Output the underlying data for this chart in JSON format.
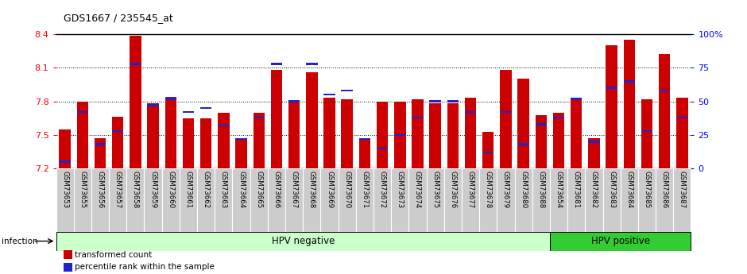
{
  "title": "GDS1667 / 235545_at",
  "samples": [
    "GSM73653",
    "GSM73655",
    "GSM73656",
    "GSM73657",
    "GSM73658",
    "GSM73659",
    "GSM73660",
    "GSM73661",
    "GSM73662",
    "GSM73663",
    "GSM73664",
    "GSM73665",
    "GSM73666",
    "GSM73667",
    "GSM73668",
    "GSM73669",
    "GSM73670",
    "GSM73671",
    "GSM73672",
    "GSM73673",
    "GSM73674",
    "GSM73675",
    "GSM73676",
    "GSM73677",
    "GSM73678",
    "GSM73679",
    "GSM73680",
    "GSM73688",
    "GSM73654",
    "GSM73681",
    "GSM73682",
    "GSM73683",
    "GSM73684",
    "GSM73685",
    "GSM73686",
    "GSM73687"
  ],
  "values": [
    7.55,
    7.8,
    7.47,
    7.66,
    8.39,
    7.78,
    7.84,
    7.65,
    7.65,
    7.7,
    7.47,
    7.7,
    8.08,
    7.8,
    8.06,
    7.83,
    7.82,
    7.47,
    7.8,
    7.8,
    7.82,
    7.78,
    7.78,
    7.83,
    7.53,
    8.08,
    8.0,
    7.68,
    7.7,
    7.82,
    7.47,
    8.3,
    8.35,
    7.82,
    8.22,
    7.83
  ],
  "percentile_ranks": [
    5,
    42,
    18,
    28,
    78,
    47,
    52,
    42,
    45,
    32,
    22,
    38,
    78,
    50,
    78,
    55,
    58,
    22,
    15,
    25,
    38,
    50,
    50,
    42,
    12,
    42,
    18,
    33,
    38,
    52,
    20,
    60,
    65,
    28,
    58,
    38
  ],
  "ymin": 7.2,
  "ymax": 8.4,
  "yticks": [
    7.2,
    7.5,
    7.8,
    8.1,
    8.4
  ],
  "right_yticks": [
    0,
    25,
    50,
    75,
    100
  ],
  "bar_color": "#cc0000",
  "blue_color": "#2222cc",
  "hpv_neg_count": 28,
  "hpv_neg_label": "HPV negative",
  "hpv_pos_label": "HPV positive",
  "hpv_neg_bg": "#ccffcc",
  "hpv_pos_bg": "#33cc33",
  "sample_bg": "#cccccc",
  "legend_red_label": "transformed count",
  "legend_blue_label": "percentile rank within the sample",
  "infection_label": "infection"
}
